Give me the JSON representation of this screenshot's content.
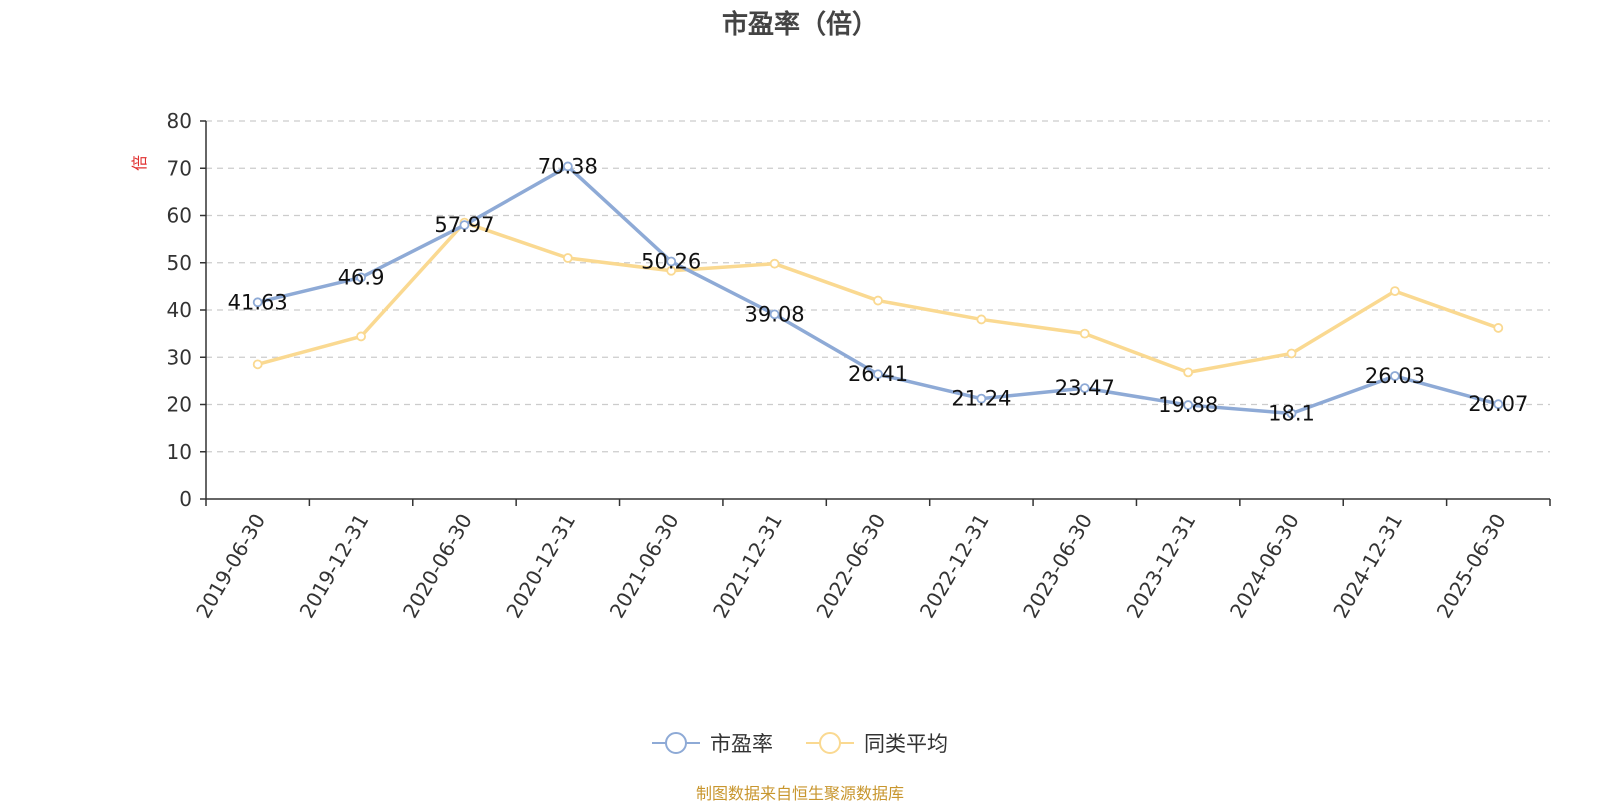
{
  "chart_data": {
    "type": "line",
    "title": "市盈率（倍）",
    "ylabel": "倍",
    "xlabel": "",
    "ylim": [
      0,
      80
    ],
    "yticks": [
      0,
      10,
      20,
      30,
      40,
      50,
      60,
      70,
      80
    ],
    "grid": true,
    "legend_position": "bottom-center",
    "categories": [
      "2019-06-30",
      "2019-12-31",
      "2020-06-30",
      "2020-12-31",
      "2021-06-30",
      "2021-12-31",
      "2022-06-30",
      "2022-12-31",
      "2023-06-30",
      "2023-12-31",
      "2024-06-30",
      "2024-12-31",
      "2025-06-30"
    ],
    "series": [
      {
        "name": "市盈率",
        "color": "#8eaad6",
        "values": [
          41.63,
          46.9,
          57.97,
          70.38,
          50.26,
          39.08,
          26.41,
          21.24,
          23.47,
          19.88,
          18.1,
          26.03,
          20.07
        ],
        "labels": [
          "41.63",
          "46.9",
          "57.97",
          "70.38",
          "50.26",
          "39.08",
          "26.41",
          "21.24",
          "23.47",
          "19.88",
          "18.1",
          "26.03",
          "20.07"
        ]
      },
      {
        "name": "同类平均",
        "color": "#fad991",
        "values": [
          28.5,
          34.4,
          58.5,
          51.0,
          48.3,
          49.8,
          42.0,
          38.0,
          35.0,
          26.8,
          30.8,
          44.0,
          36.2
        ]
      }
    ]
  },
  "source_note": "制图数据来自恒生聚源数据库"
}
